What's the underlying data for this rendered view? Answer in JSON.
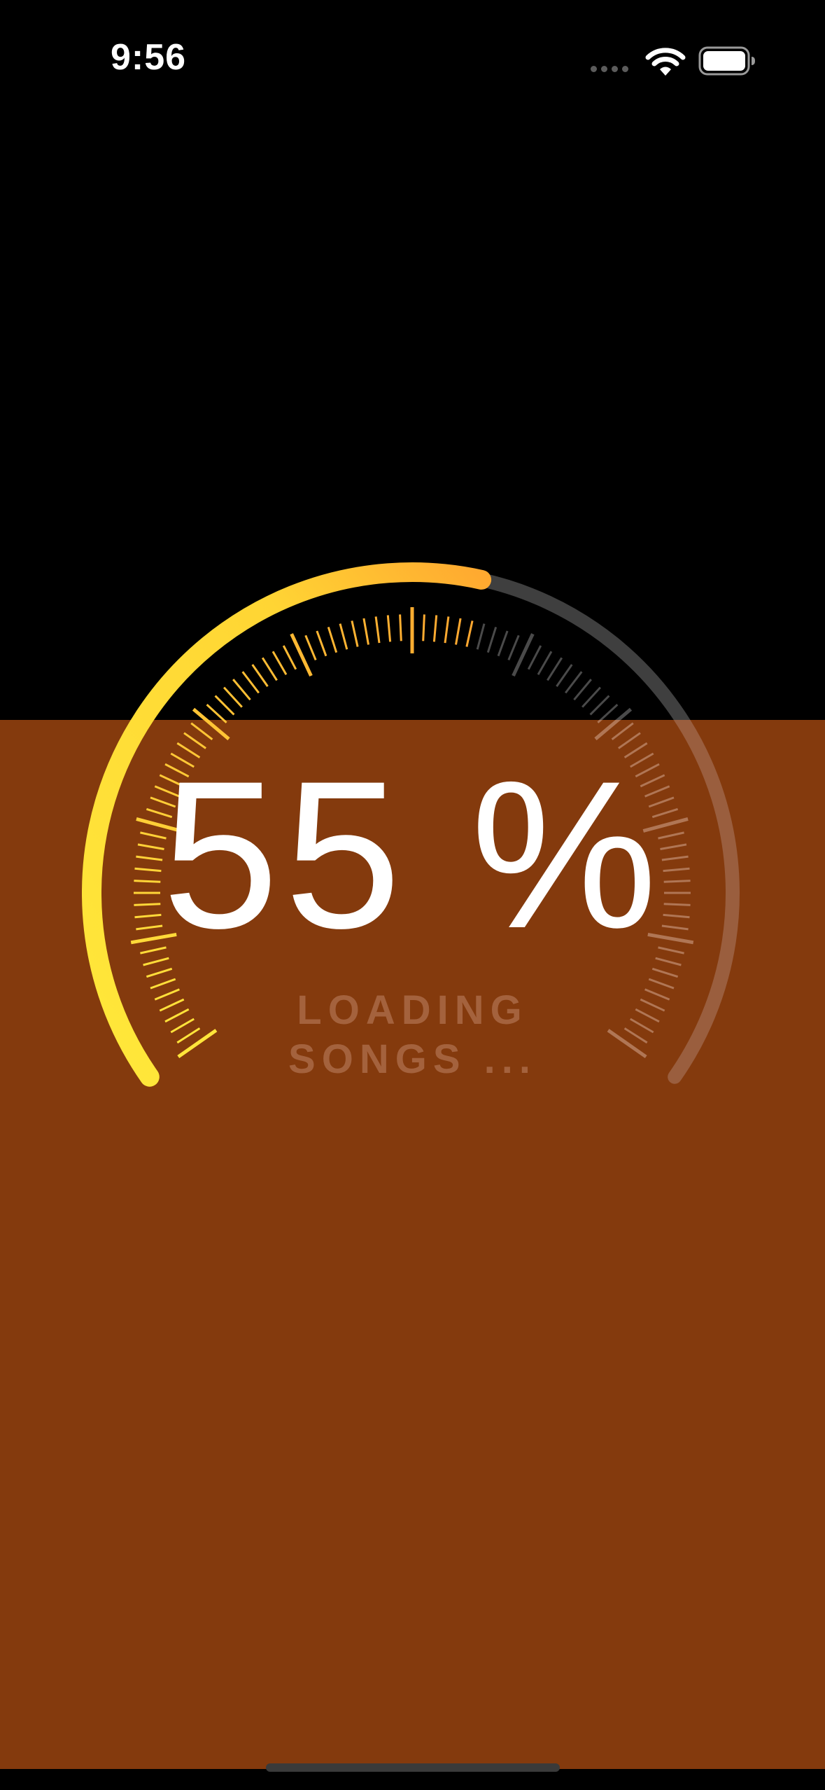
{
  "status_bar": {
    "time": "9:56",
    "icons": [
      "signal-dots-icon",
      "wifi-icon",
      "battery-icon"
    ]
  },
  "gauge": {
    "percent_label": "55 %",
    "progress_fraction": 0.55,
    "status_line_1": "LOADING",
    "status_line_2": "SONGS ..."
  },
  "colors": {
    "background_top": "#000000",
    "background_bottom": "#843a0d",
    "progress_start": "#ffe53b",
    "progress_end": "#ffb030",
    "track": "#9a5e3e",
    "track_on_black": "#3f3f3f",
    "text": "#ffffff",
    "subtext": "#a4623d"
  }
}
